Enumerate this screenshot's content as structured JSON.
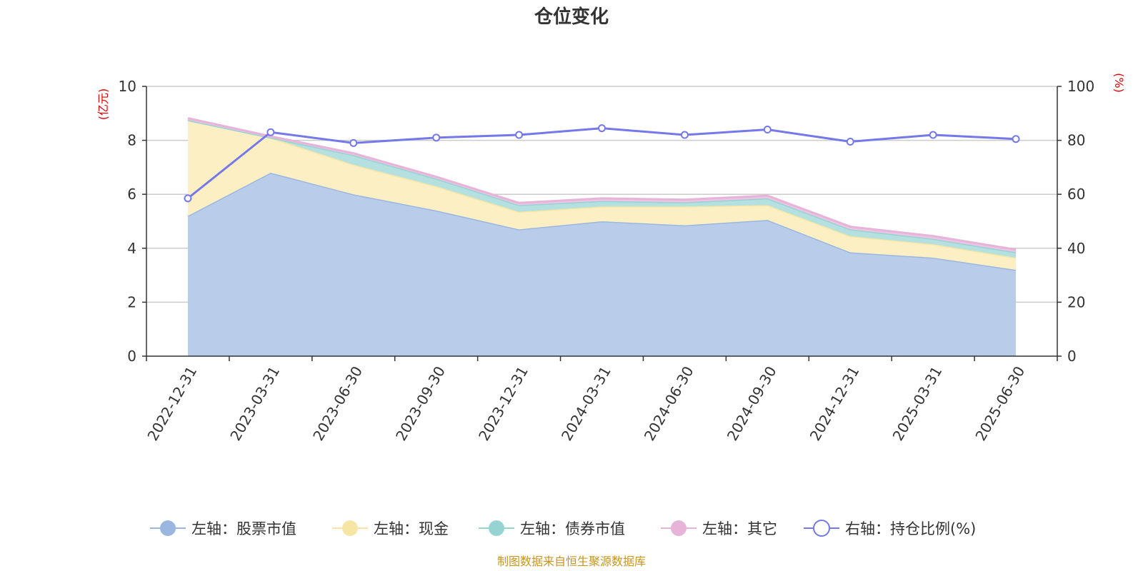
{
  "chart_data": {
    "type": "area",
    "title": "仓位变化",
    "left_unit": "(亿元)",
    "right_unit": "(%)",
    "x": [
      "2022-12-31",
      "2023-03-31",
      "2023-06-30",
      "2023-09-30",
      "2023-12-31",
      "2024-03-31",
      "2024-06-30",
      "2024-09-30",
      "2024-12-31",
      "2025-03-31",
      "2025-06-30"
    ],
    "left_yticks": [
      "0",
      "2",
      "4",
      "6",
      "8",
      "10"
    ],
    "right_yticks": [
      "0",
      "20",
      "40",
      "60",
      "80",
      "100"
    ],
    "ylim_left": [
      0,
      10
    ],
    "ylim_right": [
      0,
      100
    ],
    "grid": true,
    "legend_position": "bottom",
    "stacked": true,
    "series": [
      {
        "name": "左轴：股票市值",
        "axis": "left",
        "type": "area",
        "color": "#9bb7e0",
        "fill": "#b9cdea",
        "values": [
          5.2,
          6.8,
          6.0,
          5.4,
          4.7,
          5.0,
          4.85,
          5.05,
          3.85,
          3.65,
          3.2
        ]
      },
      {
        "name": "左轴：现金",
        "axis": "left",
        "type": "area",
        "color": "#f5e6a5",
        "fill": "#fbefc3",
        "values": [
          3.55,
          1.3,
          1.1,
          0.9,
          0.65,
          0.55,
          0.7,
          0.55,
          0.6,
          0.5,
          0.45
        ]
      },
      {
        "name": "左轴：债券市值",
        "axis": "left",
        "type": "area",
        "color": "#96d4d4",
        "fill": "#b4e0e0",
        "values": [
          0.0,
          0.0,
          0.35,
          0.28,
          0.25,
          0.2,
          0.15,
          0.25,
          0.25,
          0.2,
          0.2
        ]
      },
      {
        "name": "左轴：其它",
        "axis": "left",
        "type": "area",
        "color": "#e6b3d9",
        "fill": "#eec4e3",
        "values": [
          0.07,
          0.05,
          0.07,
          0.07,
          0.08,
          0.1,
          0.1,
          0.1,
          0.1,
          0.1,
          0.1
        ]
      },
      {
        "name": "右轴：持仓比例(%)",
        "axis": "right",
        "type": "line",
        "color": "#7478e8",
        "values": [
          58.5,
          83,
          79,
          81,
          82,
          84.5,
          82,
          84,
          79.5,
          82,
          80.5
        ]
      }
    ],
    "source": "制图数据来自恒生聚源数据库"
  }
}
